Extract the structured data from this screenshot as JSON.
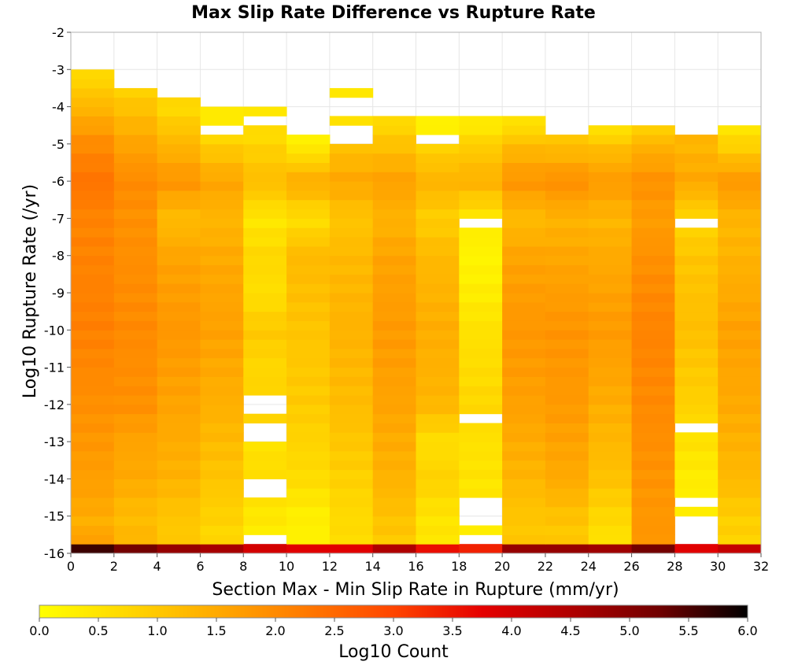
{
  "chart_data": {
    "type": "heatmap",
    "title": "Max Slip Rate Difference vs Rupture Rate",
    "xlabel": "Section Max - Min Slip Rate in Rupture (mm/yr)",
    "ylabel": "Log10 Rupture Rate (/yr)",
    "xlim": [
      0,
      32
    ],
    "ylim": [
      -16,
      -2
    ],
    "x_ticks": [
      "0",
      "2",
      "4",
      "6",
      "8",
      "10",
      "12",
      "14",
      "16",
      "18",
      "20",
      "22",
      "24",
      "26",
      "28",
      "30",
      "32"
    ],
    "y_ticks": [
      "-2",
      "-3",
      "-4",
      "-5",
      "-6",
      "-7",
      "-8",
      "-9",
      "-10",
      "-11",
      "-12",
      "-13",
      "-14",
      "-15",
      "-16"
    ],
    "x_bin_width": 2,
    "y_bin_height": 0.25,
    "y_bins_start": -16,
    "grid": true,
    "colorbar": {
      "label": "Log10 Count",
      "range": [
        0,
        6
      ],
      "ticks": [
        "0.0",
        "0.5",
        "1.0",
        "1.5",
        "2.0",
        "2.5",
        "3.0",
        "3.5",
        "4.0",
        "4.5",
        "5.0",
        "5.5",
        "6.0"
      ],
      "colors": [
        "#ffff00",
        "#ffd700",
        "#ffaa00",
        "#ff7a00",
        "#ff4500",
        "#e50000",
        "#b00000",
        "#700000",
        "#000000"
      ],
      "placement": "bottom"
    },
    "columns": [
      {
        "x": 0,
        "top": -3.0,
        "profile": [
          [
            -16,
            2.1
          ],
          [
            -15.3,
            1.4
          ],
          [
            -14.5,
            1.6
          ],
          [
            -13,
            1.8
          ],
          [
            -10,
            2.15
          ],
          [
            -7,
            2.1
          ],
          [
            -6,
            2.35
          ],
          [
            -5,
            2.0
          ],
          [
            -4,
            1.3
          ],
          [
            -3,
            0.6
          ]
        ],
        "holes": []
      },
      {
        "x": 2,
        "top": -3.5,
        "profile": [
          [
            -16,
            1.35
          ],
          [
            -15,
            1.2
          ],
          [
            -14,
            1.5
          ],
          [
            -13,
            1.6
          ],
          [
            -12,
            1.9
          ],
          [
            -10,
            2.0
          ],
          [
            -7,
            1.9
          ],
          [
            -6,
            2.0
          ],
          [
            -5,
            1.6
          ],
          [
            -4,
            1.1
          ],
          [
            -3.5,
            0.8
          ]
        ],
        "holes": []
      },
      {
        "x": 4,
        "top": -3.75,
        "profile": [
          [
            -16,
            0.95
          ],
          [
            -15,
            1.05
          ],
          [
            -14,
            1.35
          ],
          [
            -12,
            1.6
          ],
          [
            -10,
            1.8
          ],
          [
            -8,
            1.6
          ],
          [
            -7,
            1.2
          ],
          [
            -6,
            1.85
          ],
          [
            -5,
            1.3
          ],
          [
            -4,
            0.7
          ]
        ],
        "holes": []
      },
      {
        "x": 6,
        "top": -4.0,
        "profile": [
          [
            -16,
            0.65
          ],
          [
            -15,
            0.85
          ],
          [
            -14,
            1.05
          ],
          [
            -12,
            1.4
          ],
          [
            -10,
            1.65
          ],
          [
            -8,
            1.5
          ],
          [
            -7,
            1.3
          ],
          [
            -6,
            1.6
          ],
          [
            -5,
            0.9
          ],
          [
            -4.5,
            0.4
          ]
        ],
        "holes": [
          [
            -4.75,
            -4.5
          ]
        ]
      },
      {
        "x": 8,
        "top": -4.0,
        "profile": [
          [
            -16,
            0.25
          ],
          [
            -15,
            0.45
          ],
          [
            -14,
            0.65
          ],
          [
            -13,
            0.55
          ],
          [
            -12,
            0.85
          ],
          [
            -11,
            0.75
          ],
          [
            -10,
            1.0
          ],
          [
            -9,
            0.6
          ],
          [
            -8,
            0.75
          ],
          [
            -7,
            0.45
          ],
          [
            -6,
            1.2
          ],
          [
            -5,
            0.8
          ],
          [
            -4,
            0.35
          ]
        ],
        "holes": [
          [
            -15.75,
            -15.5
          ],
          [
            -14.5,
            -14.0
          ],
          [
            -13.0,
            -12.5
          ],
          [
            -12.25,
            -11.75
          ],
          [
            -4.5,
            -4.25
          ]
        ]
      },
      {
        "x": 10,
        "top": -4.75,
        "profile": [
          [
            -16,
            0.25
          ],
          [
            -15,
            0.3
          ],
          [
            -14,
            0.65
          ],
          [
            -12,
            0.95
          ],
          [
            -10,
            1.05
          ],
          [
            -8,
            1.25
          ],
          [
            -7,
            0.6
          ],
          [
            -6,
            1.5
          ],
          [
            -5,
            0.3
          ]
        ],
        "holes": [
          [
            -16,
            -15.75
          ]
        ]
      },
      {
        "x": 12,
        "top": -3.5,
        "profile": [
          [
            -16,
            0.65
          ],
          [
            -15,
            0.7
          ],
          [
            -14,
            0.85
          ],
          [
            -12,
            1.2
          ],
          [
            -10,
            1.35
          ],
          [
            -8,
            1.25
          ],
          [
            -7,
            1.05
          ],
          [
            -6,
            1.55
          ],
          [
            -5,
            1.1
          ],
          [
            -4,
            0.3
          ],
          [
            -3.5,
            0.4
          ]
        ],
        "holes": [
          [
            -16,
            -15.75
          ],
          [
            -5.0,
            -4.5
          ],
          [
            -4.25,
            -3.75
          ]
        ]
      },
      {
        "x": 14,
        "top": -4.25,
        "profile": [
          [
            -16,
            0.95
          ],
          [
            -15,
            1.1
          ],
          [
            -14,
            1.35
          ],
          [
            -12,
            1.6
          ],
          [
            -10,
            1.75
          ],
          [
            -8,
            1.6
          ],
          [
            -7,
            1.35
          ],
          [
            -6,
            1.65
          ],
          [
            -5,
            1.1
          ],
          [
            -4.25,
            0.6
          ]
        ],
        "holes": []
      },
      {
        "x": 16,
        "top": -4.25,
        "profile": [
          [
            -16,
            0.45
          ],
          [
            -15,
            0.5
          ],
          [
            -14,
            0.85
          ],
          [
            -13,
            0.6
          ],
          [
            -12,
            1.3
          ],
          [
            -10,
            1.45
          ],
          [
            -8,
            1.25
          ],
          [
            -7,
            0.9
          ],
          [
            -6,
            1.35
          ],
          [
            -5,
            0.8
          ],
          [
            -4.5,
            0.2
          ]
        ],
        "holes": [
          [
            -5.0,
            -4.75
          ]
        ]
      },
      {
        "x": 18,
        "top": -4.25,
        "profile": [
          [
            -16,
            0.3
          ],
          [
            -15,
            0.35
          ],
          [
            -14,
            0.5
          ],
          [
            -13,
            0.55
          ],
          [
            -12,
            0.75
          ],
          [
            -10,
            0.55
          ],
          [
            -9,
            0.35
          ],
          [
            -8,
            0.2
          ],
          [
            -7,
            0.45
          ],
          [
            -6,
            1.4
          ],
          [
            -5,
            0.9
          ],
          [
            -4.5,
            0.35
          ]
        ],
        "holes": [
          [
            -15.75,
            -15.5
          ],
          [
            -15.25,
            -14.5
          ],
          [
            -12.5,
            -12.25
          ],
          [
            -7.25,
            -7.0
          ]
        ]
      },
      {
        "x": 20,
        "top": -4.25,
        "profile": [
          [
            -16,
            1.0
          ],
          [
            -15,
            1.05
          ],
          [
            -14,
            1.3
          ],
          [
            -12,
            1.65
          ],
          [
            -10,
            1.8
          ],
          [
            -8,
            1.6
          ],
          [
            -7,
            1.2
          ],
          [
            -6,
            1.85
          ],
          [
            -5,
            1.2
          ],
          [
            -4.5,
            0.55
          ]
        ],
        "holes": []
      },
      {
        "x": 22,
        "top": -4.75,
        "profile": [
          [
            -16,
            0.95
          ],
          [
            -15,
            1.1
          ],
          [
            -14,
            1.5
          ],
          [
            -12,
            1.75
          ],
          [
            -10,
            1.85
          ],
          [
            -8,
            1.55
          ],
          [
            -7,
            1.35
          ],
          [
            -6,
            1.95
          ],
          [
            -5,
            1.1
          ]
        ],
        "holes": []
      },
      {
        "x": 24,
        "top": -4.5,
        "profile": [
          [
            -16,
            0.45
          ],
          [
            -15,
            0.75
          ],
          [
            -14,
            1.1
          ],
          [
            -12,
            1.45
          ],
          [
            -10,
            1.75
          ],
          [
            -8,
            1.5
          ],
          [
            -7,
            1.3
          ],
          [
            -6,
            1.75
          ],
          [
            -5,
            1.1
          ],
          [
            -4.5,
            0.35
          ]
        ],
        "holes": []
      },
      {
        "x": 26,
        "top": -4.5,
        "profile": [
          [
            -16,
            1.85
          ],
          [
            -15,
            1.8
          ],
          [
            -14,
            1.85
          ],
          [
            -12,
            2.0
          ],
          [
            -10,
            2.1
          ],
          [
            -8,
            1.9
          ],
          [
            -7,
            1.7
          ],
          [
            -6,
            1.9
          ],
          [
            -5,
            1.35
          ],
          [
            -4.5,
            0.7
          ]
        ],
        "holes": []
      },
      {
        "x": 28,
        "top": -4.75,
        "profile": [
          [
            -16,
            0.35
          ],
          [
            -15,
            0.3
          ],
          [
            -14,
            0.35
          ],
          [
            -13,
            0.55
          ],
          [
            -12,
            0.85
          ],
          [
            -10,
            1.15
          ],
          [
            -8,
            1.05
          ],
          [
            -7,
            0.75
          ],
          [
            -6,
            1.55
          ],
          [
            -5,
            1.3
          ]
        ],
        "holes": [
          [
            -16,
            -15.0
          ],
          [
            -14.75,
            -14.5
          ],
          [
            -12.75,
            -12.5
          ],
          [
            -7.25,
            -7.0
          ]
        ]
      },
      {
        "x": 30,
        "top": -4.5,
        "profile": [
          [
            -16,
            0.8
          ],
          [
            -15,
            0.9
          ],
          [
            -14,
            1.25
          ],
          [
            -12,
            1.5
          ],
          [
            -10,
            1.65
          ],
          [
            -8,
            1.35
          ],
          [
            -7,
            1.3
          ],
          [
            -6,
            1.8
          ],
          [
            -5,
            0.8
          ],
          [
            -4.5,
            0.45
          ]
        ],
        "holes": []
      }
    ],
    "bottom_row": {
      "y": -16,
      "values": [
        5.6,
        5.2,
        4.8,
        4.6,
        4.0,
        3.8,
        3.8,
        4.5,
        3.6,
        3.4,
        4.8,
        4.8,
        4.7,
        5.2,
        3.8,
        4.2
      ]
    }
  }
}
